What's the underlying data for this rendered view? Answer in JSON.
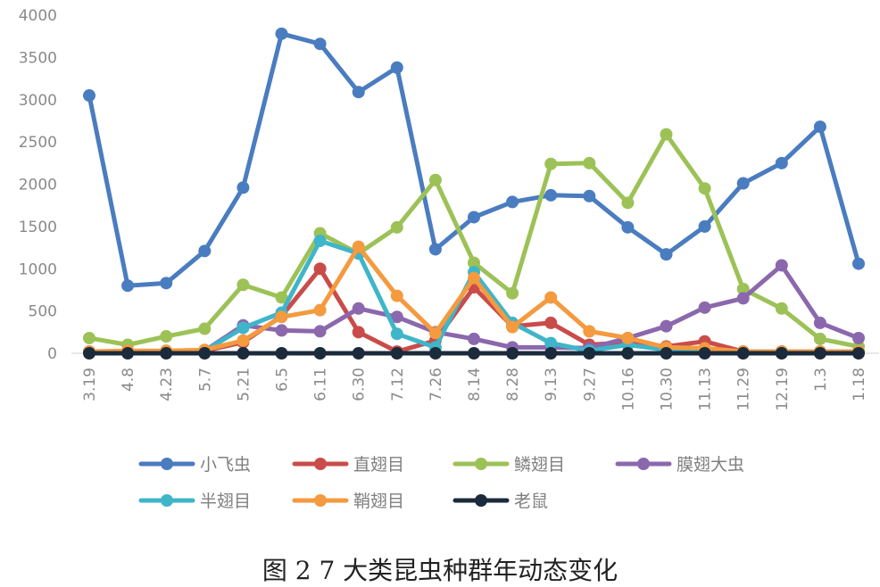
{
  "caption": "图 2  7 大类昆虫种群年动态变化",
  "chart_data": {
    "type": "line",
    "categories": [
      "3.19",
      "4.8",
      "4.23",
      "5.7",
      "5.21",
      "6.5",
      "6.11",
      "6.30",
      "7.12",
      "7.26",
      "8.14",
      "8.28",
      "9.13",
      "9.27",
      "10.16",
      "10.30",
      "11.13",
      "11.29",
      "12.19",
      "1.3",
      "1.18"
    ],
    "ylim": [
      0,
      4000
    ],
    "yticks": [
      0,
      500,
      1000,
      1500,
      2000,
      2500,
      3000,
      3500,
      4000
    ],
    "grid": false,
    "legend_position": "bottom",
    "series": [
      {
        "name": "小飞虫",
        "color": "#4a7cc0",
        "values": [
          3050,
          800,
          830,
          1210,
          1960,
          3780,
          3660,
          3090,
          3380,
          1230,
          1610,
          1790,
          1870,
          1860,
          1490,
          1170,
          1500,
          2010,
          2250,
          2680,
          1060
        ]
      },
      {
        "name": "直翅目",
        "color": "#c94c4a",
        "values": [
          20,
          20,
          20,
          30,
          130,
          440,
          1000,
          250,
          20,
          150,
          780,
          320,
          360,
          100,
          130,
          80,
          140,
          20,
          20,
          20,
          20
        ]
      },
      {
        "name": "鳞翅目",
        "color": "#9cc257",
        "values": [
          180,
          100,
          200,
          290,
          810,
          660,
          1420,
          1180,
          1490,
          2050,
          1070,
          710,
          2240,
          2250,
          1780,
          2590,
          1950,
          760,
          530,
          170,
          80
        ]
      },
      {
        "name": "膜翅大虫",
        "color": "#8b68ad",
        "values": [
          20,
          20,
          20,
          30,
          330,
          270,
          260,
          530,
          430,
          250,
          170,
          70,
          70,
          60,
          180,
          320,
          540,
          650,
          1040,
          360,
          180
        ]
      },
      {
        "name": "半翅目",
        "color": "#3fb5c9",
        "values": [
          20,
          20,
          20,
          30,
          300,
          480,
          1330,
          1180,
          230,
          70,
          960,
          360,
          120,
          30,
          100,
          40,
          40,
          20,
          20,
          20,
          20
        ]
      },
      {
        "name": "鞘翅目",
        "color": "#f49a3f",
        "values": [
          20,
          30,
          30,
          40,
          150,
          430,
          510,
          1260,
          680,
          240,
          890,
          310,
          660,
          260,
          180,
          70,
          60,
          20,
          20,
          20,
          20
        ]
      },
      {
        "name": "老鼠",
        "color": "#1b2b3b",
        "values": [
          0,
          0,
          0,
          0,
          0,
          0,
          0,
          0,
          0,
          0,
          0,
          0,
          0,
          0,
          0,
          0,
          0,
          0,
          0,
          0,
          0
        ]
      }
    ]
  }
}
